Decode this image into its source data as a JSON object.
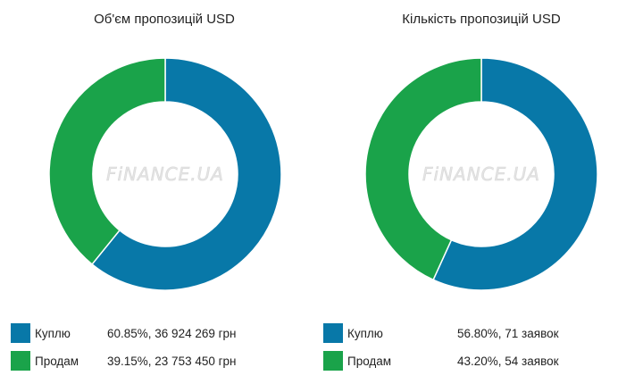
{
  "colors": {
    "buy": "#0878a8",
    "sell": "#1aa34a"
  },
  "watermark": "FiNANCE.UA",
  "chart_data": [
    {
      "type": "pie",
      "title": "Об'єм пропозицій USD",
      "categories": [
        "Куплю",
        "Продам"
      ],
      "values": [
        60.85,
        39.15
      ],
      "value_labels": [
        "60.85%, 36 924 269 грн",
        "39.15%, 23 753 450 грн"
      ],
      "colors": [
        "#0878a8",
        "#1aa34a"
      ],
      "legend": "bottom"
    },
    {
      "type": "pie",
      "title": "Кількість пропозицій USD",
      "categories": [
        "Куплю",
        "Продам"
      ],
      "values": [
        56.8,
        43.2
      ],
      "value_labels": [
        "56.80%, 71 заявок",
        "43.20%, 54 заявок"
      ],
      "colors": [
        "#0878a8",
        "#1aa34a"
      ],
      "legend": "bottom"
    }
  ]
}
